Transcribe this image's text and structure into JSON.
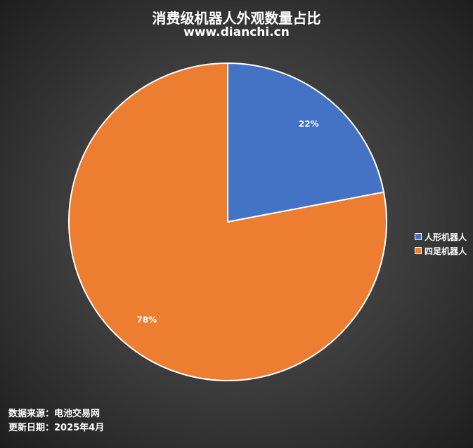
{
  "chart_data": {
    "type": "pie",
    "title": "消费级机器人外观数量占比",
    "subtitle": "www.dianchi.cn",
    "categories": [
      "人形机器人",
      "四足机器人"
    ],
    "values": [
      22,
      78
    ],
    "labels": [
      "22%",
      "78%"
    ],
    "colors": [
      "#4472C4",
      "#ED7D31"
    ],
    "start_angle": "12 o'clock, clockwise",
    "legend": "right"
  },
  "footer": {
    "source": "数据来源：电池交易网",
    "updated": "更新日期：2025年4月"
  }
}
